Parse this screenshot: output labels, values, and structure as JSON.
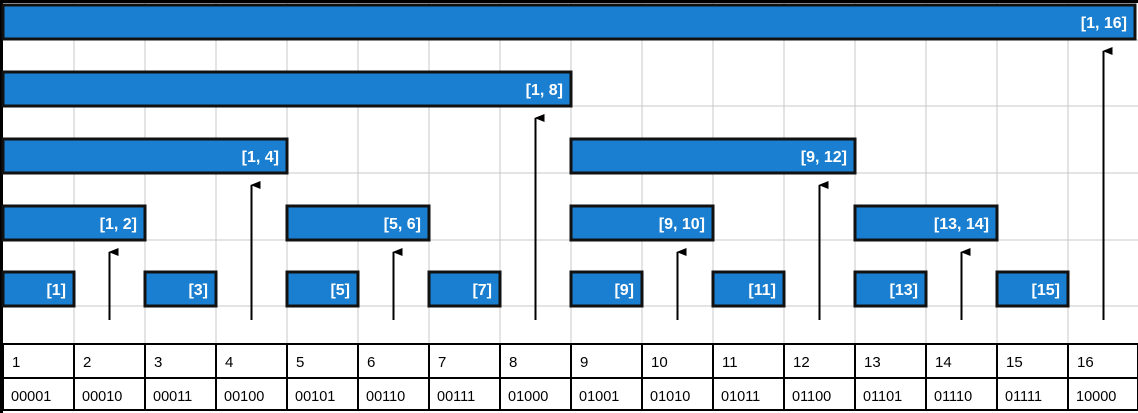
{
  "colors": {
    "bar_fill": "#1a7fd0",
    "bar_border": "#111111",
    "label_text": "#ffffff",
    "grid_line": "#c8c8c8",
    "background": "#ffffff",
    "arrow": "#000000",
    "table_text": "#000000"
  },
  "columns": [
    {
      "index": "1",
      "binary": "00001"
    },
    {
      "index": "2",
      "binary": "00010"
    },
    {
      "index": "3",
      "binary": "00011"
    },
    {
      "index": "4",
      "binary": "00100"
    },
    {
      "index": "5",
      "binary": "00101"
    },
    {
      "index": "6",
      "binary": "00110"
    },
    {
      "index": "7",
      "binary": "00111"
    },
    {
      "index": "8",
      "binary": "01000"
    },
    {
      "index": "9",
      "binary": "01001"
    },
    {
      "index": "10",
      "binary": "01010"
    },
    {
      "index": "11",
      "binary": "01011"
    },
    {
      "index": "12",
      "binary": "01100"
    },
    {
      "index": "13",
      "binary": "01101"
    },
    {
      "index": "14",
      "binary": "01110"
    },
    {
      "index": "15",
      "binary": "01111"
    },
    {
      "index": "16",
      "binary": "10000"
    }
  ],
  "intervals": [
    {
      "label": "[1, 16]",
      "start": 1,
      "end": 16,
      "level": 4
    },
    {
      "label": "[1, 8]",
      "start": 1,
      "end": 8,
      "level": 3
    },
    {
      "label": "[1, 4]",
      "start": 1,
      "end": 4,
      "level": 2
    },
    {
      "label": "[9, 12]",
      "start": 9,
      "end": 12,
      "level": 2
    },
    {
      "label": "[1, 2]",
      "start": 1,
      "end": 2,
      "level": 1
    },
    {
      "label": "[5, 6]",
      "start": 5,
      "end": 6,
      "level": 1
    },
    {
      "label": "[9, 10]",
      "start": 9,
      "end": 10,
      "level": 1
    },
    {
      "label": "[13, 14]",
      "start": 13,
      "end": 14,
      "level": 1
    },
    {
      "label": "[1]",
      "start": 1,
      "end": 1,
      "level": 0
    },
    {
      "label": "[3]",
      "start": 3,
      "end": 3,
      "level": 0
    },
    {
      "label": "[5]",
      "start": 5,
      "end": 5,
      "level": 0
    },
    {
      "label": "[7]",
      "start": 7,
      "end": 7,
      "level": 0
    },
    {
      "label": "[9]",
      "start": 9,
      "end": 9,
      "level": 0
    },
    {
      "label": "[11]",
      "start": 11,
      "end": 11,
      "level": 0
    },
    {
      "label": "[13]",
      "start": 13,
      "end": 13,
      "level": 0
    },
    {
      "label": "[15]",
      "start": 15,
      "end": 15,
      "level": 0
    }
  ],
  "arrows": [
    {
      "column": 2,
      "up_to_level": 1
    },
    {
      "column": 4,
      "up_to_level": 2
    },
    {
      "column": 6,
      "up_to_level": 1
    },
    {
      "column": 8,
      "up_to_level": 3
    },
    {
      "column": 10,
      "up_to_level": 1
    },
    {
      "column": 12,
      "up_to_level": 2
    },
    {
      "column": 14,
      "up_to_level": 1
    },
    {
      "column": 16,
      "up_to_level": 4
    }
  ]
}
